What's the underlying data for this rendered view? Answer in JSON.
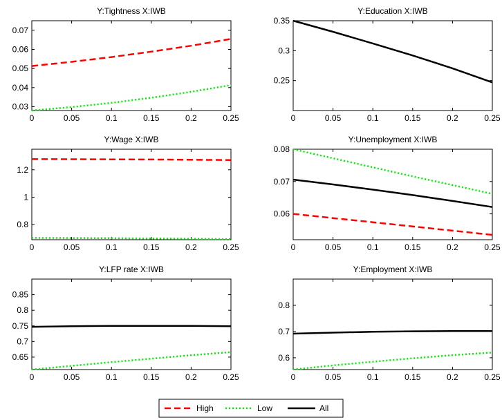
{
  "figure": {
    "legend": {
      "placement": "bottom-center",
      "entries": [
        {
          "label": "High",
          "color": "#ff0000",
          "style": "dashed"
        },
        {
          "label": "Low",
          "color": "#00ee00",
          "style": "dotted"
        },
        {
          "label": "All",
          "color": "#000000",
          "style": "solid"
        }
      ]
    }
  },
  "chart_data": [
    {
      "type": "line",
      "title": "Y:Tightness X:IWB",
      "xlabel": "",
      "ylabel": "",
      "xlim": [
        0,
        0.25
      ],
      "ylim": [
        0.028,
        0.075
      ],
      "xticks": [
        0,
        0.05,
        0.1,
        0.15,
        0.2,
        0.25
      ],
      "xtick_labels": [
        "0",
        "0.05",
        "0.1",
        "0.15",
        "0.2",
        "0.25"
      ],
      "yticks": [
        0.03,
        0.04,
        0.05,
        0.06,
        0.07
      ],
      "ytick_labels": [
        "0.03",
        "0.04",
        "0.05",
        "0.06",
        "0.07"
      ],
      "grid": false,
      "series": [
        {
          "name": "High",
          "color": "#ff0000",
          "style": "dashed",
          "x": [
            0,
            0.05,
            0.1,
            0.15,
            0.2,
            0.25
          ],
          "y": [
            0.0513,
            0.0535,
            0.056,
            0.0588,
            0.0619,
            0.0655
          ]
        },
        {
          "name": "Low",
          "color": "#00ee00",
          "style": "dotted",
          "x": [
            0,
            0.05,
            0.1,
            0.15,
            0.2,
            0.25
          ],
          "y": [
            0.028,
            0.0298,
            0.032,
            0.0347,
            0.0378,
            0.0413
          ]
        }
      ]
    },
    {
      "type": "line",
      "title": "Y:Education X:IWB",
      "xlabel": "",
      "ylabel": "",
      "xlim": [
        0,
        0.25
      ],
      "ylim": [
        0.2,
        0.35
      ],
      "xticks": [
        0,
        0.05,
        0.1,
        0.15,
        0.2,
        0.25
      ],
      "xtick_labels": [
        "0",
        "0.05",
        "0.1",
        "0.15",
        "0.2",
        "0.25"
      ],
      "yticks": [
        0.25,
        0.3,
        0.35
      ],
      "ytick_labels": [
        "0.25",
        "0.3",
        "0.35"
      ],
      "grid": false,
      "series": [
        {
          "name": "All",
          "color": "#000000",
          "style": "solid",
          "x": [
            0,
            0.05,
            0.1,
            0.15,
            0.2,
            0.25
          ],
          "y": [
            0.35,
            0.3315,
            0.312,
            0.292,
            0.2705,
            0.247
          ]
        }
      ]
    },
    {
      "type": "line",
      "title": "Y:Wage X:IWB",
      "xlabel": "",
      "ylabel": "",
      "xlim": [
        0,
        0.25
      ],
      "ylim": [
        0.69,
        1.35
      ],
      "xticks": [
        0,
        0.05,
        0.1,
        0.15,
        0.2,
        0.25
      ],
      "xtick_labels": [
        "0",
        "0.05",
        "0.1",
        "0.15",
        "0.2",
        "0.25"
      ],
      "yticks": [
        0.8,
        1.0,
        1.2
      ],
      "ytick_labels": [
        "0.8",
        "1",
        "1.2"
      ],
      "grid": false,
      "series": [
        {
          "name": "High",
          "color": "#ff0000",
          "style": "dashed",
          "x": [
            0,
            0.05,
            0.1,
            0.15,
            0.2,
            0.25
          ],
          "y": [
            1.278,
            1.277,
            1.276,
            1.275,
            1.273,
            1.271
          ]
        },
        {
          "name": "Low",
          "color": "#00ee00",
          "style": "dotted",
          "x": [
            0,
            0.05,
            0.1,
            0.15,
            0.2,
            0.25
          ],
          "y": [
            0.703,
            0.702,
            0.701,
            0.699,
            0.697,
            0.694
          ]
        }
      ]
    },
    {
      "type": "line",
      "title": "Y:Unemployment X:IWB",
      "xlabel": "",
      "ylabel": "",
      "xlim": [
        0,
        0.25
      ],
      "ylim": [
        0.052,
        0.08
      ],
      "xticks": [
        0,
        0.05,
        0.1,
        0.15,
        0.2,
        0.25
      ],
      "xtick_labels": [
        "0",
        "0.05",
        "0.1",
        "0.15",
        "0.2",
        "0.25"
      ],
      "yticks": [
        0.06,
        0.07,
        0.08
      ],
      "ytick_labels": [
        "0.06",
        "0.07",
        "0.08"
      ],
      "grid": false,
      "series": [
        {
          "name": "High",
          "color": "#ff0000",
          "style": "dashed",
          "x": [
            0,
            0.05,
            0.1,
            0.15,
            0.2,
            0.25
          ],
          "y": [
            0.06,
            0.0587,
            0.0574,
            0.0561,
            0.0548,
            0.0535
          ]
        },
        {
          "name": "Low",
          "color": "#00ee00",
          "style": "dotted",
          "x": [
            0,
            0.05,
            0.1,
            0.15,
            0.2,
            0.25
          ],
          "y": [
            0.08,
            0.0772,
            0.0744,
            0.0716,
            0.0689,
            0.0662
          ]
        },
        {
          "name": "All",
          "color": "#000000",
          "style": "solid",
          "x": [
            0,
            0.05,
            0.1,
            0.15,
            0.2,
            0.25
          ],
          "y": [
            0.0706,
            0.0691,
            0.0675,
            0.0658,
            0.064,
            0.0621
          ]
        }
      ]
    },
    {
      "type": "line",
      "title": "Y:LFP rate X:IWB",
      "xlabel": "",
      "ylabel": "",
      "xlim": [
        0,
        0.25
      ],
      "ylim": [
        0.61,
        0.9
      ],
      "xticks": [
        0,
        0.05,
        0.1,
        0.15,
        0.2,
        0.25
      ],
      "xtick_labels": [
        "0",
        "0.05",
        "0.1",
        "0.15",
        "0.2",
        "0.25"
      ],
      "yticks": [
        0.65,
        0.7,
        0.75,
        0.8,
        0.85
      ],
      "ytick_labels": [
        "0.65",
        "0.7",
        "0.75",
        "0.8",
        "0.85"
      ],
      "grid": false,
      "series": [
        {
          "name": "Low",
          "color": "#00ee00",
          "style": "dotted",
          "x": [
            0,
            0.05,
            0.1,
            0.15,
            0.2,
            0.25
          ],
          "y": [
            0.61,
            0.622,
            0.634,
            0.645,
            0.656,
            0.666
          ]
        },
        {
          "name": "All",
          "color": "#000000",
          "style": "solid",
          "x": [
            0,
            0.05,
            0.1,
            0.15,
            0.2,
            0.25
          ],
          "y": [
            0.747,
            0.749,
            0.75,
            0.75,
            0.75,
            0.749
          ]
        }
      ]
    },
    {
      "type": "line",
      "title": "Y:Employment X:IWB",
      "xlabel": "",
      "ylabel": "",
      "xlim": [
        0,
        0.25
      ],
      "ylim": [
        0.555,
        0.9
      ],
      "xticks": [
        0,
        0.05,
        0.1,
        0.15,
        0.2,
        0.25
      ],
      "xtick_labels": [
        "0",
        "0.05",
        "0.1",
        "0.15",
        "0.2",
        "0.25"
      ],
      "yticks": [
        0.6,
        0.7,
        0.8
      ],
      "ytick_labels": [
        "0.6",
        "0.7",
        "0.8"
      ],
      "grid": false,
      "series": [
        {
          "name": "Low",
          "color": "#00ee00",
          "style": "dotted",
          "x": [
            0,
            0.05,
            0.1,
            0.15,
            0.2,
            0.25
          ],
          "y": [
            0.555,
            0.571,
            0.585,
            0.598,
            0.61,
            0.62
          ]
        },
        {
          "name": "All",
          "color": "#000000",
          "style": "solid",
          "x": [
            0,
            0.05,
            0.1,
            0.15,
            0.2,
            0.25
          ],
          "y": [
            0.692,
            0.696,
            0.699,
            0.701,
            0.702,
            0.702
          ]
        }
      ]
    }
  ]
}
